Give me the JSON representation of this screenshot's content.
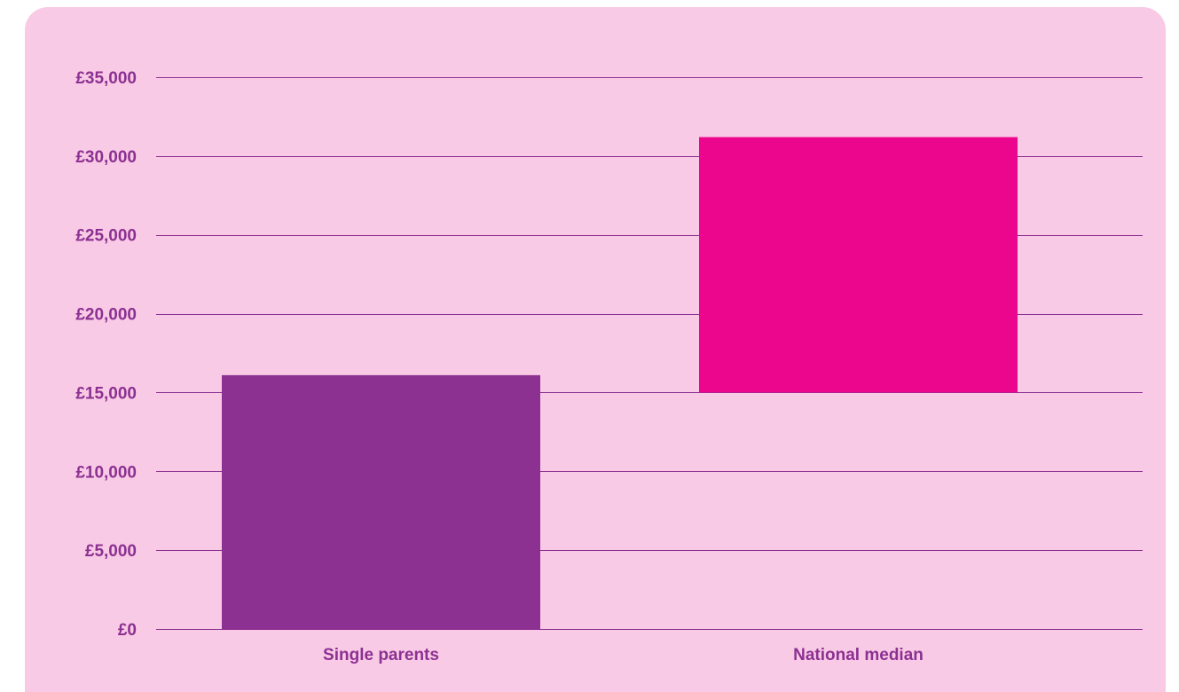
{
  "chart_data": {
    "type": "bar",
    "categories": [
      "Single parents",
      "National median"
    ],
    "series": [
      {
        "values": [
          [
            0,
            16100
          ],
          [
            15000,
            31200
          ]
        ],
        "colors": [
          "#8c3192",
          "#ec068d"
        ]
      }
    ],
    "title": "",
    "xlabel": "",
    "ylabel": "",
    "ylim": [
      0,
      35000
    ],
    "yticks": [
      0,
      5000,
      10000,
      15000,
      20000,
      25000,
      30000,
      35000
    ],
    "ytick_labels": [
      "£0",
      "£5,000",
      "£10,000",
      "£15,000",
      "£20,000",
      "£25,000",
      "£30,000",
      "£35,000"
    ],
    "grid": true,
    "legend": "none"
  },
  "colors": {
    "background": "#f9cae5",
    "gridline": "#8c3192",
    "label_text": "#8c3192"
  }
}
